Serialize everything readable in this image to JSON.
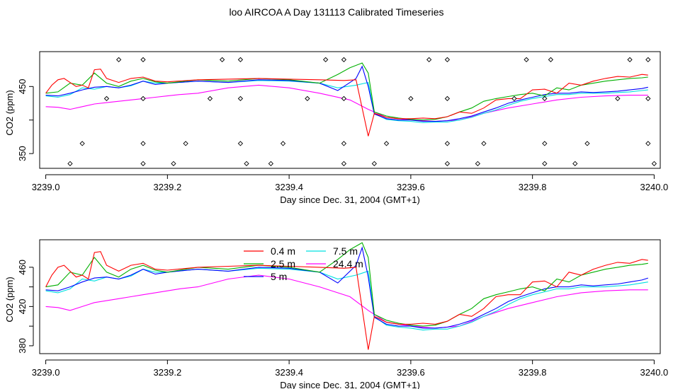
{
  "title": "loo AIRCOA A  Day 131113  Calibrated Timeseries",
  "chart_data": [
    {
      "type": "line",
      "xlabel": "Day since Dec. 31, 2004 (GMT+1)",
      "ylabel": "CO2 (ppm)",
      "xlim": [
        3238.99,
        3240.01
      ],
      "ylim": [
        328,
        502
      ],
      "x_ticks": [
        3239.0,
        3239.2,
        3239.4,
        3239.6,
        3239.8,
        3240.0
      ],
      "x_tick_labels": [
        "3239.0",
        "3239.2",
        "3239.4",
        "3239.6",
        "3239.8",
        "3240.0"
      ],
      "y_ticks": [
        350,
        400,
        450
      ],
      "y_tick_labels": [
        "350",
        "",
        "450"
      ],
      "y_labeled": [
        350,
        450
      ],
      "series": [
        {
          "color": "#ff0000",
          "x": [
            3239.0,
            3239.01,
            3239.02,
            3239.03,
            3239.04,
            3239.05,
            3239.06,
            3239.07,
            3239.08,
            3239.09,
            3239.1,
            3239.12,
            3239.14,
            3239.16,
            3239.18,
            3239.2,
            3239.25,
            3239.3,
            3239.35,
            3239.4,
            3239.45,
            3239.49,
            3239.51,
            3239.52,
            3239.53,
            3239.54,
            3239.56,
            3239.58,
            3239.6,
            3239.62,
            3239.64,
            3239.66,
            3239.68,
            3239.7,
            3239.72,
            3239.74,
            3239.76,
            3239.78,
            3239.8,
            3239.82,
            3239.84,
            3239.86,
            3239.88,
            3239.9,
            3239.92,
            3239.94,
            3239.96,
            3239.98,
            3239.99
          ],
          "y": [
            440,
            452,
            460,
            462,
            456,
            450,
            452,
            448,
            475,
            476,
            462,
            456,
            462,
            464,
            458,
            457,
            460,
            461,
            462,
            461,
            460,
            459,
            460,
            418,
            376,
            410,
            404,
            402,
            402,
            403,
            402,
            405,
            412,
            410,
            418,
            430,
            432,
            432,
            445,
            446,
            440,
            455,
            452,
            458,
            462,
            465,
            464,
            468,
            467
          ]
        },
        {
          "color": "#00b000",
          "x": [
            3239.0,
            3239.02,
            3239.04,
            3239.06,
            3239.08,
            3239.1,
            3239.12,
            3239.14,
            3239.16,
            3239.18,
            3239.2,
            3239.25,
            3239.3,
            3239.35,
            3239.4,
            3239.45,
            3239.48,
            3239.5,
            3239.52,
            3239.53,
            3239.54,
            3239.56,
            3239.58,
            3239.6,
            3239.62,
            3239.64,
            3239.66,
            3239.68,
            3239.7,
            3239.72,
            3239.74,
            3239.76,
            3239.78,
            3239.8,
            3239.82,
            3239.84,
            3239.86,
            3239.88,
            3239.9,
            3239.92,
            3239.94,
            3239.96,
            3239.98,
            3239.99
          ],
          "y": [
            440,
            442,
            455,
            452,
            470,
            455,
            450,
            458,
            462,
            457,
            455,
            460,
            458,
            462,
            460,
            455,
            468,
            478,
            485,
            470,
            412,
            406,
            403,
            401,
            400,
            401,
            405,
            412,
            418,
            428,
            432,
            435,
            438,
            440,
            436,
            448,
            445,
            452,
            455,
            458,
            460,
            462,
            463,
            464
          ]
        },
        {
          "color": "#0000ff",
          "x": [
            3239.0,
            3239.02,
            3239.04,
            3239.06,
            3239.08,
            3239.1,
            3239.12,
            3239.14,
            3239.16,
            3239.18,
            3239.2,
            3239.25,
            3239.3,
            3239.35,
            3239.4,
            3239.45,
            3239.48,
            3239.51,
            3239.52,
            3239.53,
            3239.54,
            3239.56,
            3239.58,
            3239.6,
            3239.62,
            3239.64,
            3239.66,
            3239.68,
            3239.7,
            3239.72,
            3239.74,
            3239.76,
            3239.78,
            3239.8,
            3239.82,
            3239.84,
            3239.86,
            3239.88,
            3239.9,
            3239.92,
            3239.94,
            3239.96,
            3239.98,
            3239.99
          ],
          "y": [
            437,
            436,
            440,
            445,
            449,
            450,
            448,
            452,
            458,
            453,
            455,
            458,
            456,
            460,
            459,
            455,
            444,
            462,
            480,
            450,
            409,
            402,
            400,
            400,
            398,
            398,
            399,
            402,
            406,
            412,
            418,
            425,
            430,
            434,
            438,
            440,
            440,
            442,
            441,
            442,
            443,
            445,
            447,
            449
          ]
        },
        {
          "color": "#00e0e0",
          "x": [
            3239.0,
            3239.02,
            3239.04,
            3239.06,
            3239.08,
            3239.1,
            3239.12,
            3239.14,
            3239.16,
            3239.18,
            3239.2,
            3239.25,
            3239.3,
            3239.35,
            3239.4,
            3239.45,
            3239.48,
            3239.51,
            3239.53,
            3239.54,
            3239.56,
            3239.58,
            3239.6,
            3239.62,
            3239.64,
            3239.66,
            3239.68,
            3239.7,
            3239.72,
            3239.74,
            3239.76,
            3239.78,
            3239.8,
            3239.82,
            3239.84,
            3239.86,
            3239.88,
            3239.9,
            3239.92,
            3239.94,
            3239.96,
            3239.98,
            3239.99
          ],
          "y": [
            436,
            434,
            438,
            448,
            446,
            450,
            448,
            451,
            458,
            455,
            455,
            458,
            456,
            459,
            458,
            455,
            448,
            452,
            456,
            410,
            401,
            399,
            398,
            396,
            397,
            397,
            400,
            404,
            410,
            415,
            422,
            428,
            432,
            435,
            438,
            438,
            440,
            440,
            440,
            441,
            442,
            444,
            445
          ]
        },
        {
          "color": "#ff00ff",
          "x": [
            3239.0,
            3239.02,
            3239.04,
            3239.06,
            3239.08,
            3239.1,
            3239.12,
            3239.14,
            3239.16,
            3239.18,
            3239.2,
            3239.22,
            3239.25,
            3239.3,
            3239.35,
            3239.4,
            3239.45,
            3239.5,
            3239.53,
            3239.56,
            3239.6,
            3239.64,
            3239.68,
            3239.72,
            3239.76,
            3239.8,
            3239.84,
            3239.88,
            3239.92,
            3239.96,
            3239.99
          ],
          "y": [
            420,
            419,
            416,
            420,
            424,
            426,
            428,
            430,
            432,
            434,
            436,
            438,
            440,
            448,
            452,
            448,
            440,
            430,
            416,
            404,
            400,
            398,
            400,
            410,
            418,
            424,
            430,
            434,
            436,
            437,
            437
          ]
        }
      ],
      "markers": {
        "type": "open-diamond",
        "x": [
          3239.12,
          3239.16,
          3239.29,
          3239.32,
          3239.46,
          3239.49,
          3239.63,
          3239.66,
          3239.79,
          3239.83,
          3239.96,
          3239.99,
          3239.1,
          3239.16,
          3239.27,
          3239.32,
          3239.43,
          3239.49,
          3239.6,
          3239.66,
          3239.77,
          3239.82,
          3239.94,
          3239.99,
          3239.06,
          3239.16,
          3239.23,
          3239.32,
          3239.39,
          3239.49,
          3239.56,
          3239.66,
          3239.72,
          3239.82,
          3239.89,
          3239.99,
          3239.04,
          3239.16,
          3239.21,
          3239.33,
          3239.37,
          3239.49,
          3239.54,
          3239.66,
          3239.71,
          3239.82,
          3239.87,
          3240.0
        ],
        "y": [
          490,
          490,
          490,
          490,
          490,
          490,
          490,
          490,
          490,
          490,
          490,
          490,
          432,
          432,
          432,
          432,
          432,
          432,
          432,
          432,
          432,
          432,
          432,
          432,
          365,
          365,
          365,
          365,
          365,
          365,
          365,
          365,
          365,
          365,
          365,
          365,
          335,
          335,
          335,
          335,
          335,
          335,
          335,
          335,
          335,
          335,
          335,
          335
        ]
      }
    },
    {
      "type": "line",
      "xlabel": "Day since Dec. 31, 2004 (GMT+1)",
      "ylabel": "CO2 (ppm)",
      "xlim": [
        3238.99,
        3240.01
      ],
      "ylim": [
        372,
        488
      ],
      "x_ticks": [
        3239.0,
        3239.2,
        3239.4,
        3239.6,
        3239.8,
        3240.0
      ],
      "x_tick_labels": [
        "3239.0",
        "3239.2",
        "3239.4",
        "3239.6",
        "3239.8",
        "3240.0"
      ],
      "y_ticks": [
        380,
        400,
        420,
        440,
        460
      ],
      "y_tick_labels": [
        "380",
        "",
        "420",
        "",
        "460"
      ],
      "legend": {
        "position": "top-center",
        "entries": [
          {
            "label": "0.4 m",
            "color": "#ff0000"
          },
          {
            "label": "2.5 m",
            "color": "#00b000"
          },
          {
            "label": "5 m",
            "color": "#0000ff"
          },
          {
            "label": "7.5 m",
            "color": "#00e0e0"
          },
          {
            "label": "24.4 m",
            "color": "#ff00ff"
          }
        ]
      },
      "series_ref": "same series as first panel"
    }
  ]
}
